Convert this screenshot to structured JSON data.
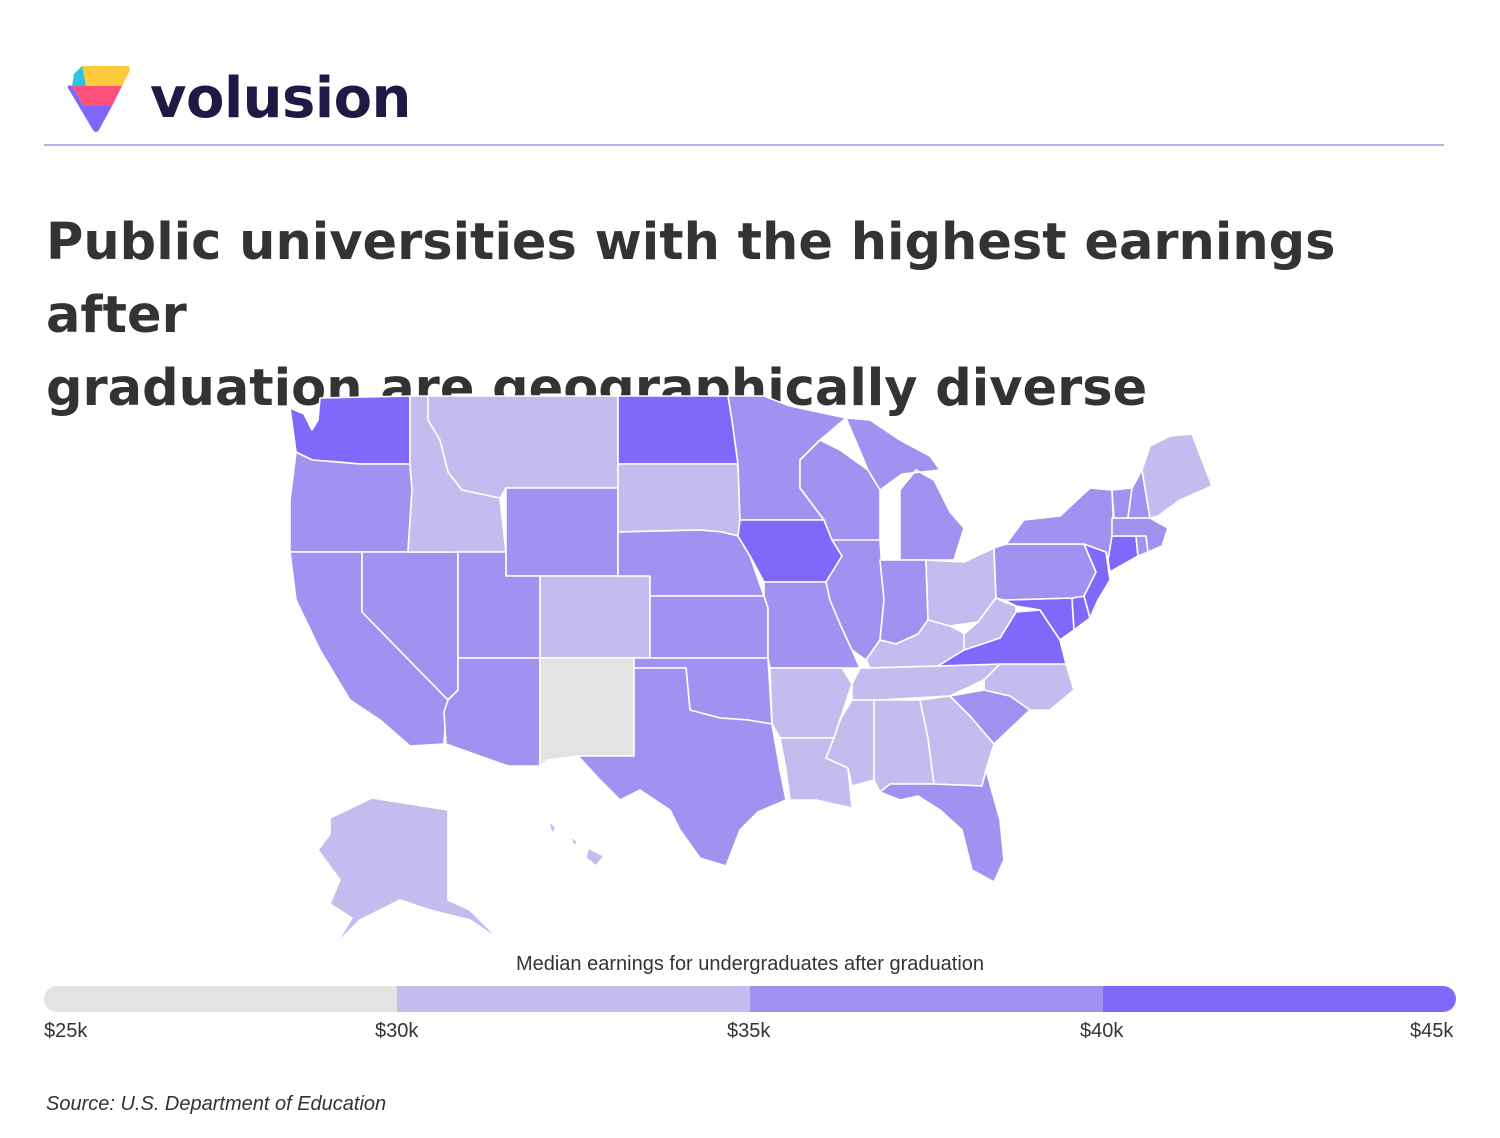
{
  "brand": {
    "name": "volusion",
    "logo_colors": [
      "#ffc93c",
      "#29c4e6",
      "#ff4f7b",
      "#8266fb"
    ]
  },
  "title_lines": [
    "Public universities with the highest earnings after",
    "graduation are geographically diverse"
  ],
  "legend": {
    "title": "Median earnings for undergraduates after graduation",
    "bins": [
      {
        "range": [
          "$25k",
          "$30k"
        ],
        "color": "#e3e3e3"
      },
      {
        "range": [
          "$30k",
          "$35k"
        ],
        "color": "#c4bcee"
      },
      {
        "range": [
          "$35k",
          "$40k"
        ],
        "color": "#a192f2"
      },
      {
        "range": [
          "$40k",
          "$45k"
        ],
        "color": "#8068fb"
      }
    ],
    "ticks": [
      "$25k",
      "$30k",
      "$35k",
      "$40k",
      "$45k"
    ]
  },
  "source": "Source: U.S. Department of Education",
  "map_data": {
    "type": "choropleth",
    "bin_by_state": {
      "WA": 3,
      "OR": 2,
      "CA": 2,
      "NV": 2,
      "ID": 1,
      "MT": 1,
      "WY": 2,
      "UT": 2,
      "AZ": 2,
      "CO": 1,
      "NM": 0,
      "ND": 3,
      "SD": 1,
      "NE": 2,
      "KS": 2,
      "OK": 2,
      "TX": 2,
      "MN": 2,
      "IA": 3,
      "MO": 2,
      "AR": 1,
      "LA": 1,
      "WI": 2,
      "IL": 2,
      "MI": 2,
      "IN": 2,
      "OH": 1,
      "KY": 1,
      "TN": 1,
      "MS": 1,
      "AL": 1,
      "GA": 1,
      "FL": 2,
      "SC": 2,
      "NC": 1,
      "VA": 3,
      "WV": 1,
      "MD": 3,
      "DE": 3,
      "NJ": 3,
      "PA": 2,
      "NY": 2,
      "CT": 3,
      "RI": 2,
      "MA": 2,
      "VT": 2,
      "NH": 2,
      "ME": 1,
      "AK": 1,
      "HI": 1
    }
  }
}
